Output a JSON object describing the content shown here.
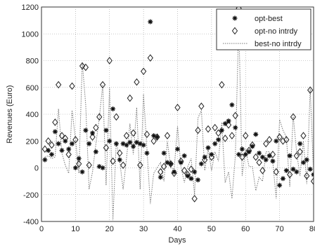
{
  "chart_data": {
    "type": "scatter",
    "title": "",
    "xlabel": "Days",
    "ylabel": "Revenues (Euro)",
    "xlim": [
      0,
      80
    ],
    "ylim": [
      -400,
      1200
    ],
    "x_ticks": [
      "0",
      "10",
      "20",
      "30",
      "40",
      "50",
      "60",
      "70",
      "80"
    ],
    "y_ticks": [
      "-400",
      "-200",
      "0",
      "200",
      "400",
      "600",
      "800",
      "1000",
      "1200"
    ],
    "x_tick_values": [
      0,
      10,
      20,
      30,
      40,
      50,
      60,
      70,
      80
    ],
    "y_tick_values": [
      -400,
      -200,
      0,
      200,
      400,
      600,
      800,
      1000,
      1200
    ],
    "grid": true,
    "legend_position": "top-right",
    "series": [
      {
        "name": "opt-best",
        "marker": "star",
        "x": [
          1,
          2,
          3,
          4,
          5,
          6,
          7,
          8,
          9,
          10,
          11,
          12,
          13,
          14,
          15,
          16,
          17,
          18,
          19,
          20,
          21,
          22,
          23,
          24,
          25,
          26,
          27,
          28,
          29,
          30,
          31,
          32,
          33,
          34,
          35,
          36,
          37,
          38,
          39,
          40,
          41,
          42,
          43,
          44,
          45,
          46,
          47,
          48,
          49,
          50,
          51,
          52,
          53,
          54,
          55,
          56,
          57,
          58,
          59,
          60,
          61,
          62,
          63,
          64,
          65,
          66,
          67,
          68,
          69,
          70,
          71,
          72,
          73,
          74,
          75,
          76,
          77,
          78,
          79,
          80
        ],
        "values": [
          60,
          130,
          100,
          270,
          180,
          130,
          200,
          140,
          180,
          0,
          70,
          -30,
          280,
          180,
          260,
          120,
          10,
          0,
          280,
          200,
          440,
          180,
          60,
          180,
          170,
          190,
          160,
          190,
          180,
          170,
          110,
          1090,
          240,
          230,
          -70,
          110,
          40,
          30,
          -30,
          140,
          40,
          90,
          -60,
          -80,
          -30,
          -90,
          30,
          80,
          150,
          100,
          180,
          210,
          280,
          330,
          350,
          470,
          300,
          100,
          140,
          100,
          120,
          160,
          250,
          110,
          80,
          60,
          90,
          50,
          200,
          -130,
          -80,
          -20,
          90,
          -10,
          -30,
          180,
          40,
          60,
          -10,
          -50
        ]
      },
      {
        "name": "opt-no intrdy",
        "marker": "diamond",
        "x": [
          1,
          2,
          3,
          4,
          5,
          6,
          7,
          8,
          9,
          10,
          11,
          12,
          13,
          14,
          15,
          16,
          17,
          18,
          19,
          20,
          21,
          22,
          23,
          24,
          25,
          26,
          27,
          28,
          29,
          30,
          31,
          32,
          33,
          34,
          35,
          36,
          37,
          38,
          39,
          40,
          41,
          42,
          43,
          44,
          45,
          46,
          47,
          48,
          49,
          50,
          51,
          52,
          53,
          54,
          55,
          56,
          57,
          58,
          59,
          60,
          61,
          62,
          63,
          64,
          65,
          66,
          67,
          68,
          69,
          70,
          71,
          72,
          73,
          74,
          75,
          76,
          77,
          78,
          79,
          80
        ],
        "values": [
          140,
          200,
          170,
          340,
          620,
          240,
          220,
          100,
          610,
          210,
          30,
          760,
          750,
          20,
          230,
          300,
          380,
          620,
          150,
          800,
          50,
          380,
          110,
          20,
          240,
          520,
          260,
          640,
          20,
          720,
          250,
          820,
          200,
          230,
          -30,
          10,
          240,
          30,
          -40,
          450,
          50,
          -20,
          -50,
          -10,
          -230,
          280,
          460,
          60,
          290,
          80,
          300,
          260,
          620,
          220,
          320,
          240,
          390,
          1190,
          80,
          240,
          130,
          170,
          80,
          40,
          -20,
          180,
          210,
          100,
          -30,
          230,
          200,
          210,
          -50,
          380,
          90,
          120,
          240,
          -60,
          580,
          -100
        ]
      },
      {
        "name": "best-no intrdy",
        "marker": "line",
        "x": [
          1,
          2,
          3,
          4,
          5,
          6,
          7,
          8,
          9,
          10,
          11,
          12,
          13,
          14,
          15,
          16,
          17,
          18,
          19,
          20,
          21,
          22,
          23,
          24,
          25,
          26,
          27,
          28,
          29,
          30,
          31,
          32,
          33,
          34,
          35,
          36,
          37,
          38,
          39,
          40,
          41,
          42,
          43,
          44,
          45,
          46,
          47,
          48,
          49,
          50,
          51,
          52,
          53,
          54,
          55,
          56,
          57,
          58,
          59,
          60,
          61,
          62,
          63,
          64,
          65,
          66,
          67,
          68,
          69,
          70,
          71,
          72,
          73,
          74,
          75,
          76,
          77,
          78,
          79,
          80
        ],
        "values": [
          80,
          90,
          70,
          80,
          440,
          110,
          20,
          -40,
          430,
          210,
          -40,
          790,
          470,
          -160,
          -30,
          180,
          370,
          620,
          -130,
          600,
          -390,
          200,
          50,
          -160,
          70,
          330,
          100,
          450,
          -160,
          550,
          140,
          -270,
          -40,
          0,
          40,
          -100,
          200,
          0,
          -10,
          310,
          10,
          -110,
          10,
          70,
          -200,
          370,
          430,
          -20,
          140,
          -20,
          120,
          50,
          340,
          -110,
          -30,
          -230,
          90,
          1090,
          -60,
          140,
          10,
          10,
          -170,
          -70,
          -100,
          120,
          120,
          50,
          -230,
          360,
          280,
          230,
          -140,
          390,
          120,
          -60,
          200,
          -120,
          590,
          -50
        ]
      }
    ]
  }
}
